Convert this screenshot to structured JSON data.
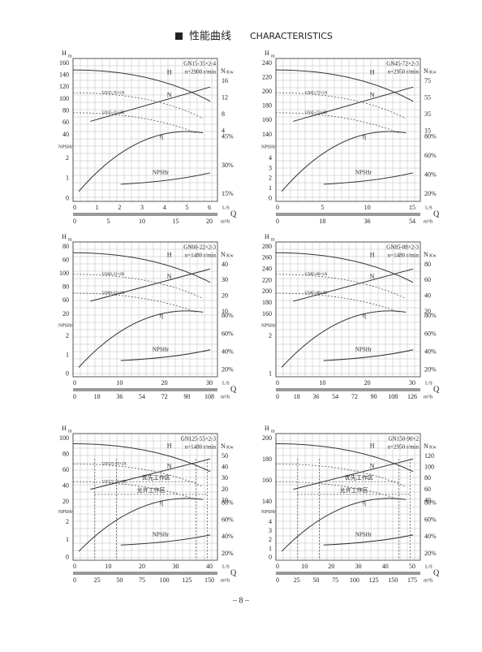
{
  "header": {
    "title_cn": "性能曲线",
    "title_en": "CHARACTERISTICS"
  },
  "labels": {
    "h": "H",
    "m": "m",
    "n": "N",
    "kw": "Kw",
    "npshr": "NPSHr",
    "eta": "η",
    "ls": "L/S",
    "m3h": "m³/h",
    "q": "Q"
  },
  "panels": [
    {
      "model": "GN15-35×2-4",
      "speed": "n=2900 r/min",
      "h_ticks": [
        "160",
        "140",
        "120",
        "100",
        "80",
        "60",
        "40"
      ],
      "npsh_ticks": [
        "2",
        "1",
        "0"
      ],
      "n_ticks": [
        "16",
        "12",
        "8",
        "4"
      ],
      "eff_ticks": [
        "45%",
        "30%",
        "15%"
      ],
      "q_ls": [
        "0",
        "1",
        "2",
        "3",
        "4",
        "5",
        "6"
      ],
      "q_m3h": [
        "0",
        "5",
        "10",
        "15",
        "20"
      ],
      "variants": [
        "GN15-35×2A",
        "GN15-35×2B"
      ]
    },
    {
      "model": "GN45-72×2-3",
      "speed": "n=2950 r/min",
      "h_ticks": [
        "240",
        "220",
        "200",
        "180",
        "160",
        "140"
      ],
      "npsh_ticks": [
        "4",
        "3",
        "2",
        "1",
        "0"
      ],
      "n_ticks": [
        "75",
        "55",
        "35",
        "15"
      ],
      "eff_ticks": [
        "80%",
        "60%",
        "40%",
        "20%"
      ],
      "q_ls": [
        "0",
        "5",
        "10",
        "15"
      ],
      "q_m3h": [
        "0",
        "18",
        "36",
        "54"
      ],
      "variants": [
        "GN45-72×2A",
        "GN45-72×2B"
      ]
    },
    {
      "model": "GN60-22×2-3",
      "speed": "n=1480 r/min",
      "h_ticks": [
        "80",
        "60",
        "100",
        "80",
        "60",
        "20"
      ],
      "npsh_ticks": [
        "2",
        "1",
        "0"
      ],
      "n_ticks": [
        "40",
        "30",
        "20",
        "10"
      ],
      "eff_ticks": [
        "80%",
        "60%",
        "40%",
        "20%"
      ],
      "q_ls": [
        "0",
        "10",
        "20",
        "30"
      ],
      "q_m3h": [
        "0",
        "18",
        "36",
        "54",
        "72",
        "90",
        "108"
      ],
      "variants": [
        "GN60-22×2B",
        "GN60-22×2A"
      ]
    },
    {
      "model": "GN85-88×2-3",
      "speed": "n=1480 r/min",
      "h_ticks": [
        "280",
        "260",
        "240",
        "220",
        "200",
        "180",
        "160"
      ],
      "npsh_ticks": [
        "2",
        "1"
      ],
      "n_ticks": [
        "80",
        "60",
        "40",
        "20"
      ],
      "eff_ticks": [
        "80%",
        "60%",
        "40%",
        "20%"
      ],
      "q_ls": [
        "0",
        "10",
        "20",
        "30"
      ],
      "q_m3h": [
        "0",
        "18",
        "36",
        "54",
        "72",
        "90",
        "108",
        "126"
      ],
      "variants": [
        "GN85-88×2A",
        "GN85-88×2B"
      ]
    },
    {
      "model": "GN125-55×2-3",
      "speed": "n=1480 r/min",
      "h_ticks": [
        "100",
        "80",
        "60",
        "40",
        "20"
      ],
      "npsh_ticks": [
        "2",
        "1",
        "0"
      ],
      "n_ticks": [
        "50",
        "40",
        "30",
        "20",
        "10"
      ],
      "eff_ticks": [
        "80%",
        "60%",
        "40%",
        "20%"
      ],
      "q_ls": [
        "0",
        "10",
        "20",
        "30",
        "40"
      ],
      "q_m3h": [
        "0",
        "25",
        "50",
        "75",
        "100",
        "125",
        "150"
      ],
      "variants": [
        "GN125-55×2A",
        "GN125-55×2B"
      ],
      "zones": [
        "优先工作区",
        "允许工作区"
      ]
    },
    {
      "model": "GN150-90×2",
      "speed": "n=2950 r/min",
      "h_ticks": [
        "200",
        "180",
        "160",
        "140"
      ],
      "npsh_ticks": [
        "4",
        "3",
        "2",
        "1",
        "0"
      ],
      "n_ticks": [
        "120",
        "100",
        "80",
        "60",
        "40"
      ],
      "eff_ticks": [
        "80%",
        "60%",
        "40%",
        "20%"
      ],
      "q_ls": [
        "0",
        "10",
        "20",
        "30",
        "40",
        "50"
      ],
      "q_m3h": [
        "0",
        "25",
        "50",
        "75",
        "100",
        "125",
        "150",
        "175"
      ],
      "variants": [],
      "zones": [
        "优先工作区",
        "允许工作区"
      ]
    }
  ],
  "page_number": "– 8 –"
}
